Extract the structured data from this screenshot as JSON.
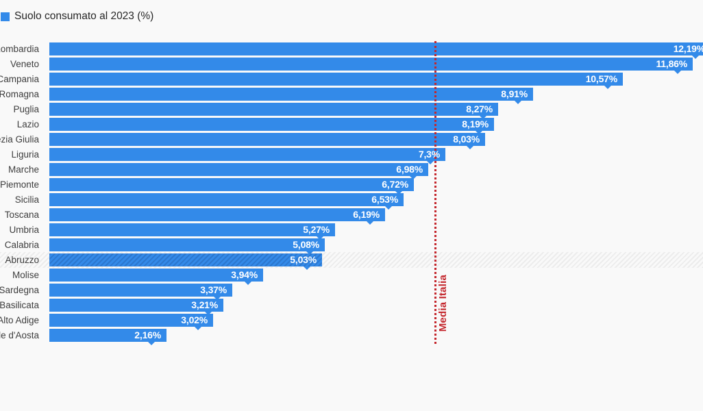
{
  "page": {
    "background_color": "#f9f9f9"
  },
  "legend": {
    "label": "Suolo consumato al 2023 (%)",
    "swatch_color": "#338ae9"
  },
  "chart_data": {
    "type": "bar",
    "orientation": "horizontal",
    "title": "Suolo consumato al 2023 (%)",
    "bar_color": "#338ae9",
    "background_color": "#f9f9f9",
    "xlim": [
      0,
      12.05
    ],
    "grid": false,
    "legend_position": "top-left",
    "categories": [
      "Lombardia",
      "Veneto",
      "Campania",
      "Emilia-Romagna",
      "Puglia",
      "Lazio",
      "Friuli-Venezia Giulia",
      "Liguria",
      "Marche",
      "Piemonte",
      "Sicilia",
      "Toscana",
      "Umbria",
      "Calabria",
      "Abruzzo",
      "Molise",
      "Sardegna",
      "Basilicata",
      "Trentino-Alto Adige",
      "Valle d'Aosta"
    ],
    "values": [
      12.19,
      11.86,
      10.57,
      8.91,
      8.27,
      8.19,
      8.03,
      7.3,
      6.98,
      6.72,
      6.53,
      6.19,
      5.27,
      5.08,
      5.03,
      3.94,
      3.37,
      3.21,
      3.02,
      2.16
    ],
    "value_labels": [
      "12,19%",
      "11,86%",
      "10,57%",
      "8,91%",
      "8,27%",
      "8,19%",
      "8,03%",
      "7,3%",
      "6,98%",
      "6,72%",
      "6,53%",
      "6,19%",
      "5,27%",
      "5,08%",
      "5,03%",
      "3,94%",
      "3,37%",
      "3,21%",
      "3,02%",
      "2,16%"
    ],
    "highlighted_category": "Abruzzo",
    "reference_line": {
      "label": "Media Italia",
      "value": 7.1,
      "orientation": "vertical",
      "style": "dotted",
      "color": "#c4262c"
    }
  }
}
